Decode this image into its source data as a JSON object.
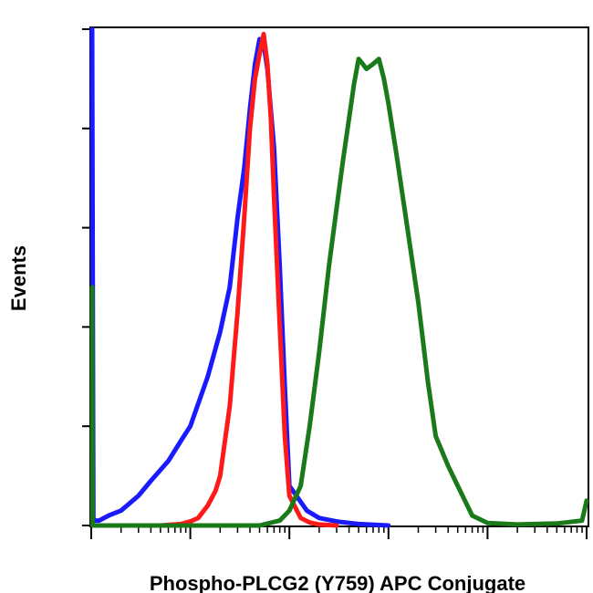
{
  "chart_data": {
    "type": "line",
    "title": "",
    "xlabel": "Phospho-PLCG2 (Y759) APC Conjugate",
    "ylabel": "Events",
    "x_scale": "log",
    "xlim": [
      1,
      100000
    ],
    "ylim": [
      0,
      100
    ],
    "grid": false,
    "legend": "none",
    "series": [
      {
        "color": "#1a1aff",
        "x": [
          1,
          1.05,
          1.2,
          1.5,
          2,
          3,
          4,
          6,
          8,
          10,
          15,
          20,
          25,
          30,
          35,
          40,
          45,
          50,
          55,
          60,
          70,
          80,
          90,
          100,
          150,
          200,
          300,
          500,
          1000
        ],
        "y": [
          100,
          1,
          1,
          2,
          3,
          6,
          9,
          13,
          17,
          20,
          30,
          39,
          48,
          62,
          72,
          84,
          93,
          98,
          97,
          92,
          76,
          52,
          28,
          8,
          3,
          1.5,
          0.8,
          0.3,
          0
        ]
      },
      {
        "color": "#ff1a1a",
        "x": [
          5,
          8,
          10,
          12,
          15,
          18,
          20,
          25,
          30,
          35,
          40,
          45,
          50,
          55,
          60,
          65,
          70,
          80,
          90,
          100,
          130,
          160,
          200,
          300
        ],
        "y": [
          0,
          0.3,
          0.8,
          1.5,
          4,
          7,
          10,
          24,
          43,
          62,
          80,
          90,
          95,
          99,
          93,
          82,
          66,
          40,
          18,
          6,
          1.5,
          0.6,
          0.2,
          0
        ]
      },
      {
        "color": "#1a7a1a",
        "x": [
          1,
          1.03,
          1.1,
          50,
          80,
          100,
          130,
          160,
          200,
          250,
          300,
          350,
          400,
          450,
          500,
          550,
          600,
          700,
          800,
          900,
          1000,
          1200,
          1500,
          2000,
          2500,
          3000,
          4000,
          5000,
          7000,
          10000,
          20000,
          50000,
          90000,
          100000
        ],
        "y": [
          48,
          0,
          0,
          0,
          1,
          3,
          8,
          20,
          35,
          52,
          64,
          74,
          82,
          89,
          94,
          93,
          92,
          93,
          94,
          90,
          85,
          75,
          62,
          45,
          29,
          18,
          12,
          8,
          2,
          0.5,
          0.2,
          0.4,
          1,
          5
        ]
      }
    ]
  }
}
